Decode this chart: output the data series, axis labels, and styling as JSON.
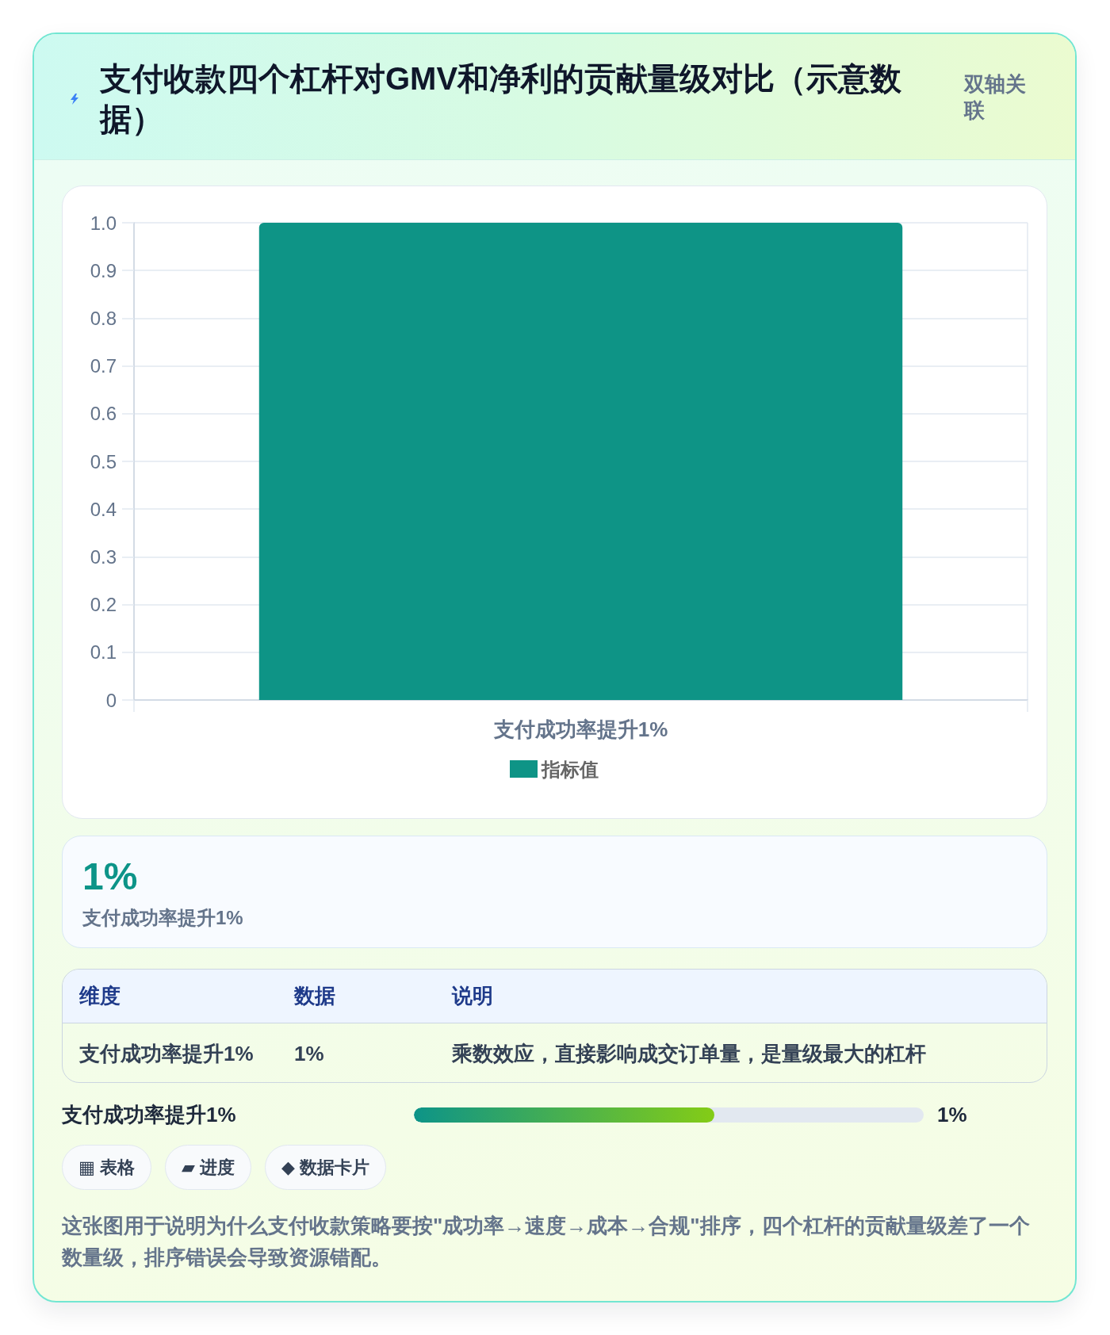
{
  "chart_data": [
    {
      "type": "bar",
      "title": "支付收款四个杠杆对GMV和净利的贡献量级对比（示意数据）",
      "annotations": [
        "双轴关联"
      ],
      "categories": [
        "支付成功率提升1%"
      ],
      "series": [
        {
          "name": "指标值",
          "color": "#0e9486",
          "values": [
            1
          ]
        }
      ],
      "ylim": [
        0,
        1
      ],
      "yticks": [
        0,
        0.1,
        0.2,
        0.3,
        0.4,
        0.5,
        0.6,
        0.7,
        0.8,
        0.9,
        {
          "value": 1,
          "label": "1.0"
        }
      ],
      "grid": true,
      "legend": "bottom"
    },
    {
      "type": "other",
      "annotations": [
        "1%",
        "支付成功率提升1%"
      ]
    },
    {
      "type": "other",
      "annotations": [
        "维度",
        "数据",
        "说明",
        "支付成功率提升1%",
        "1%",
        "乘数效应，直接影响成交订单量，是量级最大的杠杆"
      ]
    },
    {
      "type": "other",
      "annotations": [
        "支付成功率提升1%",
        "1%"
      ]
    },
    {
      "type": "other",
      "annotations": [
        "▦ 表格",
        "▰ 进度",
        "◆ 数据卡片",
        "这张图用于说明为什么支付收款策略要按\"成功率→速度→成本→合规\"排序，四个杠杆的贡献量级差了一个数量级，排序错误会导致资源错配。"
      ]
    }
  ]
}
